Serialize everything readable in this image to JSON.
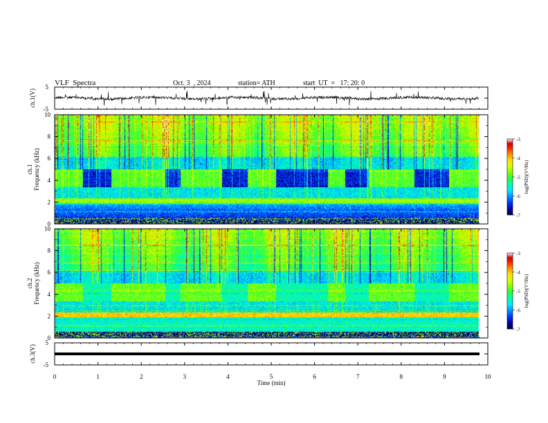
{
  "header": {
    "title": "VLF  Spectra",
    "date": "Oct. 3  , 2024",
    "station": "station= ATH",
    "start": "start  UT  =   17: 20: 0"
  },
  "chart_data": [
    {
      "type": "line",
      "ylabel": "ch.1(V)",
      "ylim": [
        -5,
        5
      ],
      "yticks": [
        5,
        -5
      ],
      "xlim": [
        0,
        10
      ],
      "description_level": 0,
      "series_color": "#000000"
    },
    {
      "type": "heatmap",
      "ylabel": "ch.1\nFrequency  (kHz)",
      "ylabel_lines": [
        "ch.1",
        "Frequency  (kHz)"
      ],
      "ylim": [
        0,
        10
      ],
      "yticks": [
        0,
        2,
        4,
        6,
        8,
        10
      ],
      "xlim": [
        0,
        10
      ],
      "data_xmax": 9.8,
      "colorbar": {
        "label": "log(PSD)(V²/Hz)",
        "range": [
          -7,
          -3
        ],
        "ticks": [
          -3,
          -4,
          -5,
          -6,
          -7
        ]
      },
      "sferic_gaps_min": [
        0.65,
        1.3,
        2.55,
        2.9,
        3.85,
        4.45,
        5.1,
        6.3,
        6.7,
        7.25,
        8.3,
        9.1
      ]
    },
    {
      "type": "heatmap",
      "ylabel": "ch.2\nFrequency  (kHz)",
      "ylabel_lines": [
        "ch.2",
        "Frequency  (kHz)"
      ],
      "ylim": [
        0,
        10
      ],
      "yticks": [
        0,
        2,
        4,
        6,
        8,
        10
      ],
      "xlim": [
        0,
        10
      ],
      "data_xmax": 9.8,
      "colorbar": {
        "label": "log(PSD)(V²/Hz)",
        "range": [
          -7,
          -3
        ],
        "ticks": [
          -3,
          -4,
          -5,
          -6,
          -7
        ]
      }
    },
    {
      "type": "line",
      "ylabel": "ch.3(V)",
      "ylim": [
        -5,
        5
      ],
      "yticks": [
        5,
        -5
      ],
      "xlim": [
        0,
        10
      ],
      "xlabel": "Time  (min)",
      "xticks": [
        0,
        1,
        2,
        3,
        4,
        5,
        6,
        7,
        8,
        9,
        10
      ],
      "level": 0,
      "series_color": "#000000"
    }
  ],
  "colormap": [
    "#00003c",
    "#0000a8",
    "#0030ff",
    "#0090ff",
    "#00e8ff",
    "#00ffb0",
    "#20ff40",
    "#80ff00",
    "#d8ff00",
    "#ffe000",
    "#ff9000",
    "#ff2000",
    "#d00000",
    "#ffffff"
  ]
}
